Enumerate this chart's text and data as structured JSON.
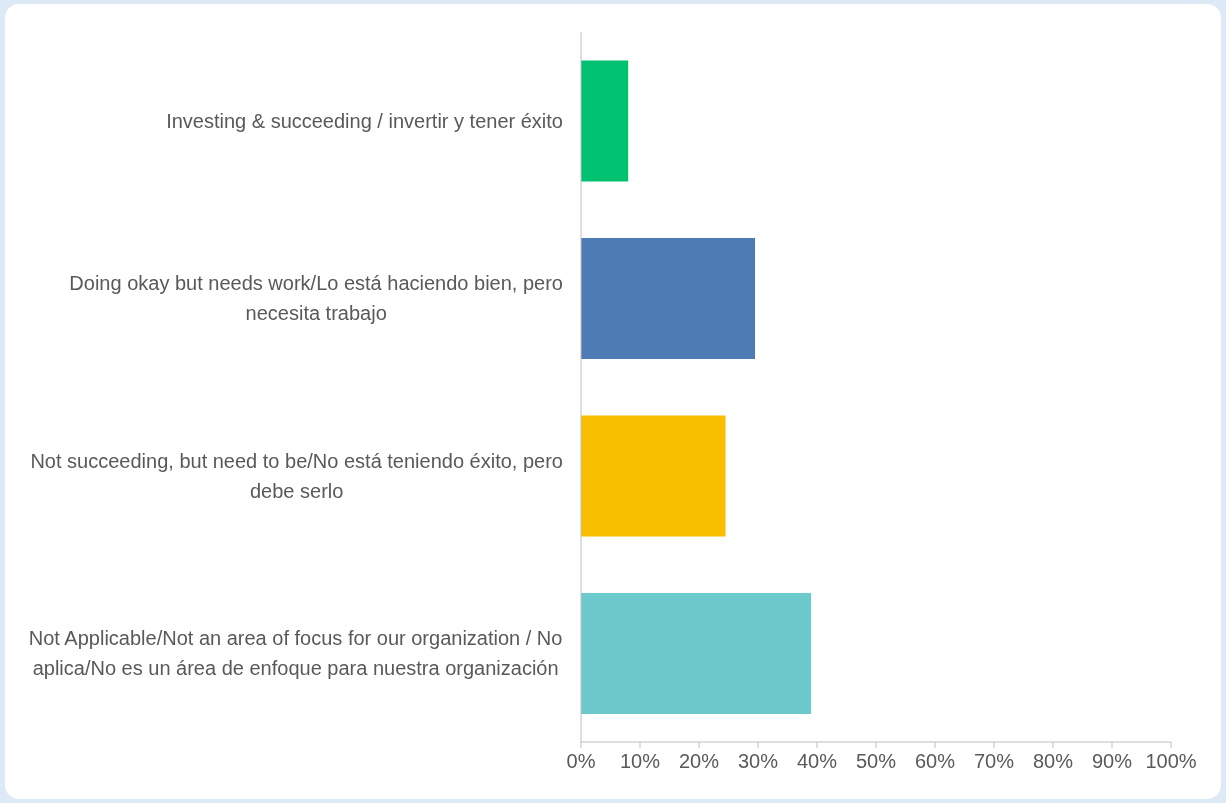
{
  "chart_data": {
    "type": "bar",
    "orientation": "horizontal",
    "categories": [
      "Investing & succeeding / invertir y tener éxito",
      "Doing okay but needs work/Lo está haciendo bien, pero necesita trabajo",
      "Not succeeding, but need to be/No está teniendo éxito, pero debe serlo",
      "Not Applicable/Not an area of focus for our organization / No aplica/No es un área de enfoque para nuestra organización"
    ],
    "values": [
      8,
      29.5,
      24.5,
      39
    ],
    "colors": [
      "#00c170",
      "#4f7bb5",
      "#f7bf00",
      "#6ccacc"
    ],
    "xlim": [
      0,
      100
    ],
    "xticks": [
      {
        "value": 0,
        "label": "0%"
      },
      {
        "value": 10,
        "label": "10%"
      },
      {
        "value": 20,
        "label": "20%"
      },
      {
        "value": 30,
        "label": "30%"
      },
      {
        "value": 40,
        "label": "40%"
      },
      {
        "value": 50,
        "label": "50%"
      },
      {
        "value": 60,
        "label": "60%"
      },
      {
        "value": 70,
        "label": "70%"
      },
      {
        "value": 80,
        "label": "80%"
      },
      {
        "value": 90,
        "label": "90%"
      },
      {
        "value": 100,
        "label": "100%"
      }
    ],
    "grid": false,
    "legend": false
  }
}
